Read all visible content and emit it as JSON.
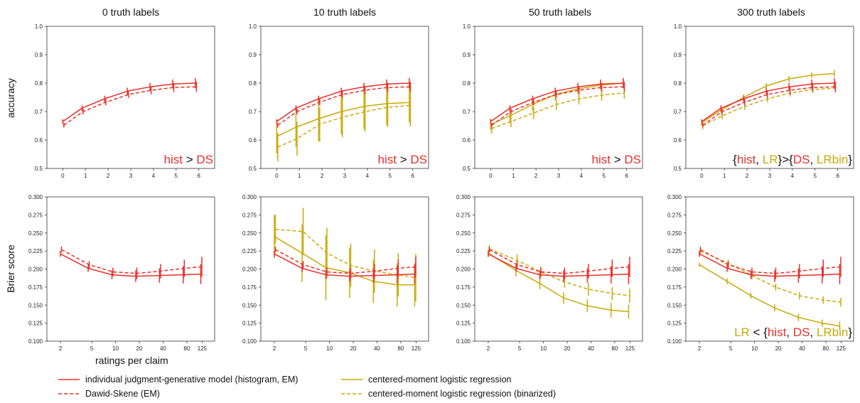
{
  "colors": {
    "red": "#e8302a",
    "gold": "#c8aa0a",
    "black": "#111111"
  },
  "chart_data": {
    "type": "line",
    "panel_titles": [
      "0 truth labels",
      "10 truth labels",
      "50 truth labels",
      "300 truth labels"
    ],
    "row_ylabels": [
      "accuracy",
      "Brier score"
    ],
    "xlabel": "ratings per claim",
    "accuracy_xticks": [
      "0",
      "1",
      "2",
      "3",
      "4",
      "5",
      "6"
    ],
    "accuracy_yticks": [
      "0.5",
      "0.6",
      "0.7",
      "0.8",
      "0.9",
      "1.0"
    ],
    "brier_xticks": [
      "2",
      "5",
      "10",
      "20",
      "40",
      "80",
      "125"
    ],
    "brier_yticks": [
      "0.100",
      "0.125",
      "0.150",
      "0.175",
      "0.200",
      "0.225",
      "0.250",
      "0.275",
      "0.300"
    ],
    "accuracy_ylim": [
      0.5,
      1.0
    ],
    "brier_ylim": [
      0.1,
      0.3
    ],
    "x_accuracy": [
      0,
      0.85,
      1.85,
      2.85,
      3.85,
      4.85,
      5.85
    ],
    "x_brier": [
      2,
      4.5,
      9,
      18,
      36,
      72,
      120
    ],
    "series_legend": [
      {
        "key": "hist",
        "name": "individual judgment-generative model (histogram, EM)",
        "color": "#e8302a",
        "dash": false
      },
      {
        "key": "ds",
        "name": "Dawid-Skene (EM)",
        "color": "#e8302a",
        "dash": true
      },
      {
        "key": "lr",
        "name": "centered-moment logistic regression",
        "color": "#c8aa0a",
        "dash": false
      },
      {
        "key": "lrbin",
        "name": "centered-moment logistic regression (binarized)",
        "color": "#c8aa0a",
        "dash": true
      }
    ],
    "annotations": [
      [
        {
          "t": "hist",
          "c": "red"
        },
        {
          "t": " > ",
          "c": "black"
        },
        {
          "t": "DS",
          "c": "red"
        }
      ],
      [
        {
          "t": "hist",
          "c": "red"
        },
        {
          "t": " > ",
          "c": "black"
        },
        {
          "t": "DS",
          "c": "red"
        }
      ],
      [
        {
          "t": "hist",
          "c": "red"
        },
        {
          "t": " > ",
          "c": "black"
        },
        {
          "t": "DS",
          "c": "red"
        }
      ],
      [
        {
          "t": "{",
          "c": "black"
        },
        {
          "t": "hist",
          "c": "red"
        },
        {
          "t": ", ",
          "c": "black"
        },
        {
          "t": "LR",
          "c": "gold"
        },
        {
          "t": "}>{",
          "c": "black"
        },
        {
          "t": "DS",
          "c": "red"
        },
        {
          "t": ", ",
          "c": "black"
        },
        {
          "t": "LRbin",
          "c": "gold"
        },
        {
          "t": "}",
          "c": "black"
        }
      ],
      null,
      null,
      null,
      [
        {
          "t": "LR",
          "c": "gold"
        },
        {
          "t": " < {",
          "c": "black"
        },
        {
          "t": "hist",
          "c": "red"
        },
        {
          "t": ", ",
          "c": "black"
        },
        {
          "t": "DS",
          "c": "red"
        },
        {
          "t": ", ",
          "c": "black"
        },
        {
          "t": "LRbin",
          "c": "gold"
        },
        {
          "t": "}",
          "c": "black"
        }
      ]
    ],
    "panels": [
      {
        "row": "accuracy",
        "col": 0,
        "series": [
          {
            "key": "hist",
            "values": [
              0.665,
              0.712,
              0.745,
              0.772,
              0.787,
              0.797,
              0.8
            ],
            "err": [
              0.008,
              0.01,
              0.011,
              0.012,
              0.014,
              0.016,
              0.018
            ]
          },
          {
            "key": "ds",
            "values": [
              0.652,
              0.7,
              0.733,
              0.76,
              0.775,
              0.785,
              0.787
            ],
            "err": [
              0.008,
              0.01,
              0.011,
              0.012,
              0.014,
              0.016,
              0.018
            ]
          }
        ]
      },
      {
        "row": "accuracy",
        "col": 1,
        "series": [
          {
            "key": "hist",
            "values": [
              0.665,
              0.712,
              0.745,
              0.772,
              0.787,
              0.797,
              0.8
            ],
            "err": [
              0.008,
              0.01,
              0.011,
              0.012,
              0.014,
              0.016,
              0.018
            ]
          },
          {
            "key": "ds",
            "values": [
              0.652,
              0.7,
              0.733,
              0.76,
              0.775,
              0.785,
              0.787
            ],
            "err": [
              0.008,
              0.01,
              0.011,
              0.012,
              0.014,
              0.016,
              0.018
            ]
          },
          {
            "key": "lr",
            "values": [
              0.612,
              0.645,
              0.675,
              0.7,
              0.718,
              0.728,
              0.732
            ],
            "err": [
              0.06,
              0.07,
              0.08,
              0.08,
              0.08,
              0.075,
              0.07
            ]
          },
          {
            "key": "lrbin",
            "values": [
              0.575,
              0.605,
              0.655,
              0.68,
              0.7,
              0.715,
              0.722
            ],
            "err": [
              0.05,
              0.06,
              0.06,
              0.07,
              0.07,
              0.07,
              0.075
            ]
          }
        ]
      },
      {
        "row": "accuracy",
        "col": 2,
        "series": [
          {
            "key": "hist",
            "values": [
              0.665,
              0.712,
              0.745,
              0.772,
              0.787,
              0.797,
              0.8
            ],
            "err": [
              0.008,
              0.01,
              0.011,
              0.012,
              0.014,
              0.016,
              0.018
            ]
          },
          {
            "key": "ds",
            "values": [
              0.652,
              0.7,
              0.733,
              0.76,
              0.775,
              0.785,
              0.787
            ],
            "err": [
              0.008,
              0.01,
              0.011,
              0.012,
              0.014,
              0.016,
              0.018
            ]
          },
          {
            "key": "lr",
            "values": [
              0.655,
              0.685,
              0.725,
              0.76,
              0.78,
              0.793,
              0.8
            ],
            "err": [
              0.02,
              0.025,
              0.022,
              0.02,
              0.018,
              0.017,
              0.017
            ]
          },
          {
            "key": "lrbin",
            "values": [
              0.64,
              0.665,
              0.695,
              0.725,
              0.745,
              0.758,
              0.765
            ],
            "err": [
              0.018,
              0.02,
              0.022,
              0.02,
              0.02,
              0.02,
              0.02
            ]
          }
        ]
      },
      {
        "row": "accuracy",
        "col": 3,
        "series": [
          {
            "key": "hist",
            "values": [
              0.665,
              0.712,
              0.745,
              0.772,
              0.787,
              0.797,
              0.8
            ],
            "err": [
              0.008,
              0.01,
              0.011,
              0.012,
              0.014,
              0.016,
              0.018
            ]
          },
          {
            "key": "ds",
            "values": [
              0.652,
              0.7,
              0.733,
              0.76,
              0.775,
              0.785,
              0.787
            ],
            "err": [
              0.008,
              0.01,
              0.011,
              0.012,
              0.014,
              0.016,
              0.018
            ]
          },
          {
            "key": "lr",
            "values": [
              0.66,
              0.705,
              0.75,
              0.79,
              0.815,
              0.828,
              0.834
            ],
            "err": [
              0.01,
              0.01,
              0.01,
              0.01,
              0.01,
              0.01,
              0.012
            ]
          },
          {
            "key": "lrbin",
            "values": [
              0.65,
              0.685,
              0.718,
              0.745,
              0.765,
              0.778,
              0.782
            ],
            "err": [
              0.012,
              0.012,
              0.012,
              0.012,
              0.012,
              0.012,
              0.014
            ]
          }
        ]
      },
      {
        "row": "brier",
        "col": 0,
        "series": [
          {
            "key": "hist",
            "values": [
              0.221,
              0.201,
              0.192,
              0.19,
              0.191,
              0.192,
              0.193
            ],
            "err": [
              0.004,
              0.005,
              0.006,
              0.008,
              0.01,
              0.012,
              0.014
            ]
          },
          {
            "key": "ds",
            "values": [
              0.227,
              0.206,
              0.196,
              0.194,
              0.197,
              0.201,
              0.203
            ],
            "err": [
              0.004,
              0.005,
              0.006,
              0.008,
              0.01,
              0.012,
              0.014
            ]
          }
        ]
      },
      {
        "row": "brier",
        "col": 1,
        "series": [
          {
            "key": "hist",
            "values": [
              0.221,
              0.201,
              0.192,
              0.19,
              0.191,
              0.192,
              0.193
            ],
            "err": [
              0.004,
              0.005,
              0.006,
              0.008,
              0.01,
              0.012,
              0.014
            ]
          },
          {
            "key": "ds",
            "values": [
              0.227,
              0.206,
              0.196,
              0.194,
              0.197,
              0.201,
              0.203
            ],
            "err": [
              0.004,
              0.005,
              0.006,
              0.008,
              0.01,
              0.012,
              0.014
            ]
          },
          {
            "key": "lr",
            "values": [
              0.245,
              0.222,
              0.202,
              0.195,
              0.183,
              0.178,
              0.178
            ],
            "err": [
              0.03,
              0.04,
              0.045,
              0.035,
              0.03,
              0.03,
              0.03
            ]
          },
          {
            "key": "lrbin",
            "values": [
              0.255,
              0.252,
              0.222,
              0.205,
              0.197,
              0.192,
              0.188
            ],
            "err": [
              0.02,
              0.033,
              0.035,
              0.03,
              0.03,
              0.03,
              0.033
            ]
          }
        ]
      },
      {
        "row": "brier",
        "col": 2,
        "series": [
          {
            "key": "hist",
            "values": [
              0.221,
              0.201,
              0.192,
              0.19,
              0.191,
              0.192,
              0.193
            ],
            "err": [
              0.004,
              0.005,
              0.006,
              0.008,
              0.01,
              0.012,
              0.014
            ]
          },
          {
            "key": "ds",
            "values": [
              0.227,
              0.206,
              0.196,
              0.194,
              0.197,
              0.201,
              0.203
            ],
            "err": [
              0.004,
              0.005,
              0.006,
              0.008,
              0.01,
              0.012,
              0.014
            ]
          },
          {
            "key": "lr",
            "values": [
              0.222,
              0.198,
              0.18,
              0.16,
              0.149,
              0.143,
              0.141
            ],
            "err": [
              0.005,
              0.008,
              0.008,
              0.008,
              0.009,
              0.01,
              0.01
            ]
          },
          {
            "key": "lrbin",
            "values": [
              0.228,
              0.212,
              0.196,
              0.182,
              0.172,
              0.166,
              0.163
            ],
            "err": [
              0.005,
              0.008,
              0.008,
              0.008,
              0.009,
              0.009,
              0.01
            ]
          }
        ]
      },
      {
        "row": "brier",
        "col": 3,
        "series": [
          {
            "key": "hist",
            "values": [
              0.221,
              0.201,
              0.192,
              0.19,
              0.191,
              0.192,
              0.193
            ],
            "err": [
              0.004,
              0.005,
              0.006,
              0.008,
              0.01,
              0.012,
              0.014
            ]
          },
          {
            "key": "ds",
            "values": [
              0.227,
              0.206,
              0.196,
              0.194,
              0.197,
              0.201,
              0.203
            ],
            "err": [
              0.004,
              0.005,
              0.006,
              0.008,
              0.01,
              0.012,
              0.014
            ]
          },
          {
            "key": "lr",
            "values": [
              0.206,
              0.183,
              0.163,
              0.146,
              0.133,
              0.125,
              0.121
            ],
            "err": [
              0.003,
              0.004,
              0.004,
              0.005,
              0.005,
              0.005,
              0.006
            ]
          },
          {
            "key": "lrbin",
            "values": [
              0.225,
              0.208,
              0.191,
              0.175,
              0.163,
              0.157,
              0.154
            ],
            "err": [
              0.004,
              0.005,
              0.005,
              0.005,
              0.005,
              0.005,
              0.006
            ]
          }
        ]
      }
    ]
  }
}
